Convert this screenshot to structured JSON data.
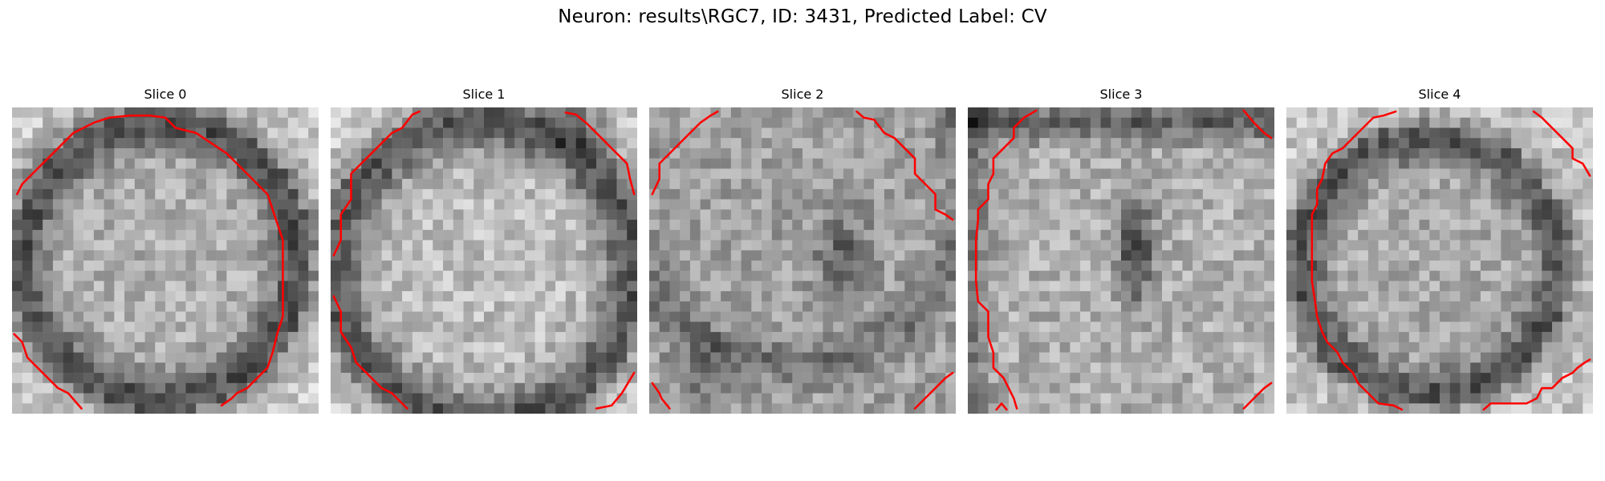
{
  "figure": {
    "title": "Neuron: results\\RGC7, ID: 3431, Predicted Label: CV",
    "contour_color": "#ff0000"
  },
  "panels": [
    {
      "title": "Slice 0"
    },
    {
      "title": "Slice 1"
    },
    {
      "title": "Slice 2"
    },
    {
      "title": "Slice 3"
    },
    {
      "title": "Slice 4"
    }
  ]
}
